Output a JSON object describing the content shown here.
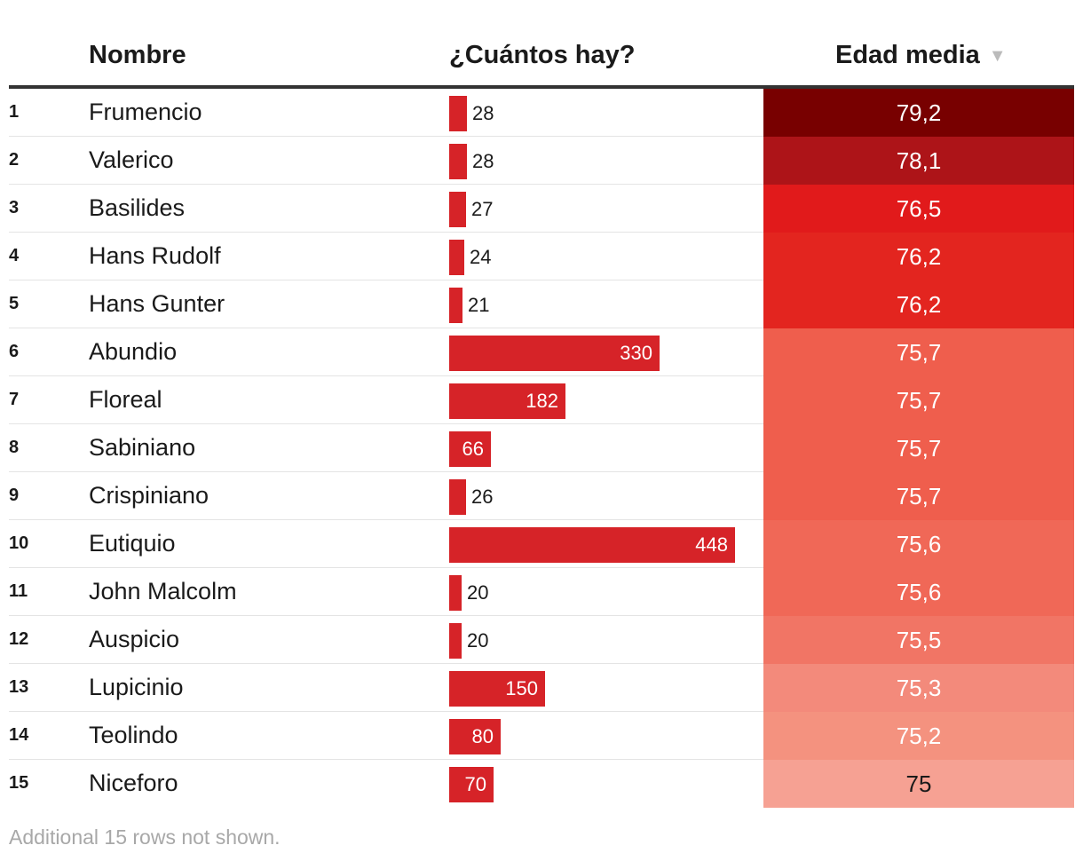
{
  "chart_data": {
    "type": "table",
    "headers": {
      "name": "Nombre",
      "count": "¿Cuántos hay?",
      "age": "Edad media"
    },
    "sort_indicator": "▼",
    "rows": [
      {
        "rank": "1",
        "name": "Frumencio",
        "count": 28,
        "count_label": "28",
        "age": 79.2,
        "age_label": "79,2"
      },
      {
        "rank": "2",
        "name": "Valerico",
        "count": 28,
        "count_label": "28",
        "age": 78.1,
        "age_label": "78,1"
      },
      {
        "rank": "3",
        "name": "Basilides",
        "count": 27,
        "count_label": "27",
        "age": 76.5,
        "age_label": "76,5"
      },
      {
        "rank": "4",
        "name": "Hans Rudolf",
        "count": 24,
        "count_label": "24",
        "age": 76.2,
        "age_label": "76,2"
      },
      {
        "rank": "5",
        "name": "Hans Gunter",
        "count": 21,
        "count_label": "21",
        "age": 76.2,
        "age_label": "76,2"
      },
      {
        "rank": "6",
        "name": "Abundio",
        "count": 330,
        "count_label": "330",
        "age": 75.7,
        "age_label": "75,7"
      },
      {
        "rank": "7",
        "name": "Floreal",
        "count": 182,
        "count_label": "182",
        "age": 75.7,
        "age_label": "75,7"
      },
      {
        "rank": "8",
        "name": "Sabiniano",
        "count": 66,
        "count_label": "66",
        "age": 75.7,
        "age_label": "75,7"
      },
      {
        "rank": "9",
        "name": "Crispiniano",
        "count": 26,
        "count_label": "26",
        "age": 75.7,
        "age_label": "75,7"
      },
      {
        "rank": "10",
        "name": "Eutiquio",
        "count": 448,
        "count_label": "448",
        "age": 75.6,
        "age_label": "75,6"
      },
      {
        "rank": "11",
        "name": "John Malcolm",
        "count": 20,
        "count_label": "20",
        "age": 75.6,
        "age_label": "75,6"
      },
      {
        "rank": "12",
        "name": "Auspicio",
        "count": 20,
        "count_label": "20",
        "age": 75.5,
        "age_label": "75,5"
      },
      {
        "rank": "13",
        "name": "Lupicinio",
        "count": 150,
        "count_label": "150",
        "age": 75.3,
        "age_label": "75,3"
      },
      {
        "rank": "14",
        "name": "Teolindo",
        "count": 80,
        "count_label": "80",
        "age": 75.2,
        "age_label": "75,2"
      },
      {
        "rank": "15",
        "name": "Niceforo",
        "count": 70,
        "count_label": "70",
        "age": 75.0,
        "age_label": "75"
      }
    ],
    "count_max": 448,
    "bar_color": "#d62328",
    "age_colors": {
      "79.2": "#780000",
      "78.1": "#ad1418",
      "76.5": "#e11a1b",
      "76.2": "#e3251f",
      "75.7": "#ef5e4d",
      "75.6": "#f06857",
      "75.5": "#f17565",
      "75.3": "#f38a7b",
      "75.2": "#f4927f",
      "75.0": "#f6a193"
    }
  },
  "footer": {
    "note": "Additional 15 rows not shown."
  }
}
